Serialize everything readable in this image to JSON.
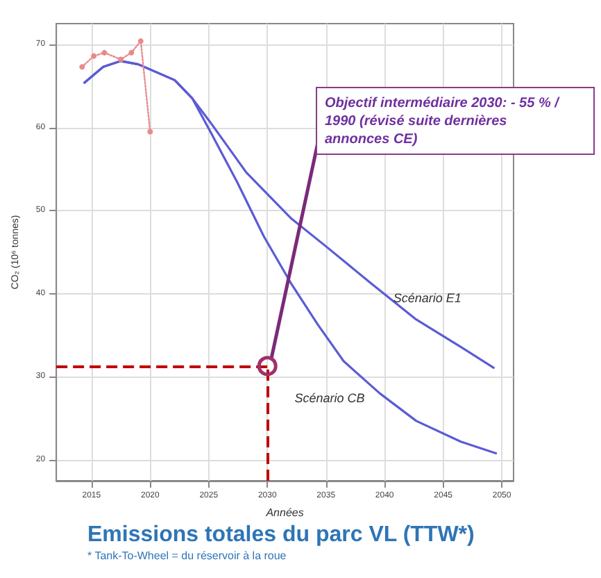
{
  "chart_data": {
    "type": "line",
    "title": "Emissions totales du parc VL (TTW*)",
    "subtitle": "* Tank-To-Wheel = du réservoir à la roue",
    "xlabel": "Années",
    "ylabel": "CO₂ (10⁶ tonnes)",
    "xlim": [
      2012,
      2051
    ],
    "xticks": [
      2015,
      2020,
      2025,
      2030,
      2035,
      2040,
      2045,
      2050
    ],
    "ylim": [
      17.5,
      72.5
    ],
    "yticks": [
      20,
      30,
      40,
      50,
      60,
      70
    ],
    "grid": true,
    "marker": "none",
    "line_style": "solid",
    "series": [
      {
        "name": "Scénario E1",
        "color": "#5b5bd6",
        "x": [
          2014.4,
          2016,
          2017.5,
          2019,
          2022.1,
          2023.6,
          2025.1,
          2028.2,
          2032,
          2035,
          2038.8,
          2042.7,
          2046.5,
          2049.3
        ],
        "values": [
          65.4,
          67.3,
          68,
          67.6,
          65.7,
          63.5,
          60.7,
          54.6,
          49.1,
          45.7,
          41.3,
          36.9,
          33.6,
          31.1
        ]
      },
      {
        "name": "Scénario CB",
        "color": "#5b5bd6",
        "x": [
          2014.4,
          2016,
          2017.5,
          2019,
          2022.1,
          2023.6,
          2025.1,
          2027.4,
          2029.7,
          2032,
          2034.3,
          2036.5,
          2039.6,
          2042.7,
          2046.5,
          2049.5
        ],
        "values": [
          65.4,
          67.3,
          68,
          67.6,
          65.7,
          63.5,
          59.6,
          53.5,
          46.9,
          41.3,
          36.3,
          31.9,
          28,
          24.7,
          22.2,
          20.8
        ]
      },
      {
        "color": "#e88a8a",
        "marker": "circle",
        "line_style": "dotted",
        "x": [
          2014.2,
          2015.2,
          2016.1,
          2017.5,
          2018.4,
          2019.2,
          2020
        ],
        "values": [
          67.3,
          68.6,
          69,
          68.2,
          69,
          70.4,
          59.5
        ]
      }
    ],
    "ref_lines": [
      {
        "axis": "x",
        "value": 2030,
        "color": "#c00000",
        "line_style": "dashed"
      },
      {
        "axis": "y",
        "value": 31.3,
        "color": "#c00000",
        "line_style": "dashed"
      }
    ],
    "annotations": [
      {
        "text": "Objectif intermédiaire 2030: - 55 % / 1990 (révisé suite dernières annonces CE)",
        "x": 2030,
        "y": 31.3
      }
    ]
  }
}
